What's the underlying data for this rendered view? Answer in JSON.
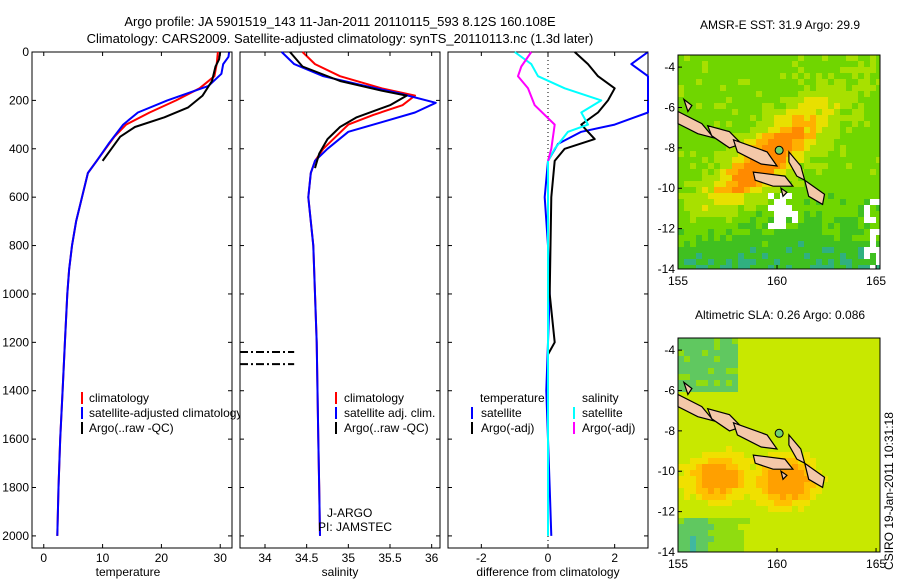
{
  "header": {
    "line1": "Argo profile: JA 5901519_143 11-Jan-2011 20110115_593 8.12S 160.108E",
    "line2": "Climatology: CARS2009. Satellite-adjusted climatology: synTS_20110113.nc (1.3d later)"
  },
  "footer": {
    "credit": "CSIRO 19-Jan-2011 10:31:18"
  },
  "colors": {
    "climatology": "#ff0000",
    "satellite": "#0000ff",
    "argo": "#000000",
    "sat_salinity": "#00ffff",
    "argo_salinity": "#ff00ff"
  },
  "chart_data": [
    {
      "id": "temperature",
      "type": "line",
      "xlabel": "temperature",
      "xlim": [
        -2,
        32
      ],
      "ylim": [
        0,
        2050
      ],
      "y_reversed": true,
      "xticks": [
        0,
        10,
        20,
        30
      ],
      "yticks": [
        0,
        200,
        400,
        600,
        800,
        1000,
        1200,
        1400,
        1600,
        1800,
        2000
      ],
      "legend": [
        "climatology",
        "satellite-adjusted climatology",
        "Argo(..raw -QC)"
      ],
      "series": [
        {
          "name": "climatology",
          "color": "#ff0000",
          "points": [
            [
              29.6,
              0
            ],
            [
              29.4,
              50
            ],
            [
              29.0,
              100
            ],
            [
              26.5,
              150
            ],
            [
              22.5,
              200
            ],
            [
              18,
              250
            ],
            [
              14,
              300
            ],
            [
              12,
              350
            ],
            [
              10.5,
              400
            ],
            [
              9,
              450
            ],
            [
              7.5,
              500
            ],
            [
              6.5,
              600
            ],
            [
              5.5,
              700
            ],
            [
              4.8,
              800
            ],
            [
              4.3,
              900
            ],
            [
              4,
              1000
            ],
            [
              3.6,
              1200
            ],
            [
              3.2,
              1400
            ],
            [
              2.8,
              1600
            ],
            [
              2.5,
              1800
            ],
            [
              2.3,
              2000
            ]
          ]
        },
        {
          "name": "satellite-adjusted climatology",
          "color": "#0000ff",
          "points": [
            [
              31.5,
              0
            ],
            [
              31.4,
              20
            ],
            [
              30.5,
              50
            ],
            [
              30.2,
              90
            ],
            [
              28,
              140
            ],
            [
              21,
              200
            ],
            [
              16,
              250
            ],
            [
              13.5,
              300
            ],
            [
              11,
              380
            ],
            [
              9,
              450
            ],
            [
              7.5,
              500
            ],
            [
              6.5,
              600
            ],
            [
              5.5,
              700
            ],
            [
              4.8,
              800
            ],
            [
              4.3,
              900
            ],
            [
              4,
              1000
            ],
            [
              3.6,
              1200
            ],
            [
              3.2,
              1400
            ],
            [
              2.8,
              1600
            ],
            [
              2.5,
              1800
            ],
            [
              2.3,
              2000
            ]
          ]
        },
        {
          "name": "Argo(..raw -QC)",
          "color": "#000000",
          "points": [
            [
              30,
              0
            ],
            [
              29.8,
              30
            ],
            [
              29.2,
              60
            ],
            [
              28.6,
              120
            ],
            [
              27,
              180
            ],
            [
              24.5,
              230
            ],
            [
              20.5,
              270
            ],
            [
              15.5,
              310
            ],
            [
              13,
              350
            ],
            [
              11.5,
              400
            ],
            [
              10,
              450
            ]
          ]
        }
      ]
    },
    {
      "id": "salinity",
      "type": "line",
      "xlabel": "salinity",
      "xlim": [
        33.7,
        36.1
      ],
      "ylim": [
        0,
        2050
      ],
      "y_reversed": true,
      "xticks": [
        34,
        34.5,
        35,
        35.5,
        36
      ],
      "legend": [
        "climatology",
        "satellite adj. clim.",
        "Argo(..raw -QC)"
      ],
      "annotations": [
        "J-ARGO",
        "PI: JAMSTEC"
      ],
      "series": [
        {
          "name": "climatology",
          "color": "#ff0000",
          "points": [
            [
              34.45,
              0
            ],
            [
              34.6,
              50
            ],
            [
              34.9,
              100
            ],
            [
              35.4,
              150
            ],
            [
              35.8,
              180
            ],
            [
              35.65,
              220
            ],
            [
              35.3,
              260
            ],
            [
              35.0,
              300
            ],
            [
              34.85,
              350
            ],
            [
              34.7,
              400
            ],
            [
              34.6,
              450
            ],
            [
              34.55,
              500
            ],
            [
              34.52,
              600
            ],
            [
              34.55,
              700
            ],
            [
              34.58,
              800
            ],
            [
              34.6,
              1000
            ],
            [
              34.62,
              1200
            ],
            [
              34.63,
              1400
            ],
            [
              34.64,
              1600
            ],
            [
              34.65,
              1800
            ],
            [
              34.66,
              2000
            ]
          ]
        },
        {
          "name": "satellite adj. clim.",
          "color": "#0000ff",
          "points": [
            [
              34.2,
              0
            ],
            [
              34.35,
              50
            ],
            [
              34.7,
              100
            ],
            [
              35.2,
              140
            ],
            [
              35.6,
              170
            ],
            [
              36.05,
              210
            ],
            [
              35.8,
              250
            ],
            [
              35.4,
              290
            ],
            [
              35.0,
              330
            ],
            [
              34.75,
              400
            ],
            [
              34.6,
              450
            ],
            [
              34.55,
              500
            ],
            [
              34.52,
              600
            ],
            [
              34.55,
              700
            ],
            [
              34.58,
              800
            ],
            [
              34.6,
              1000
            ],
            [
              34.62,
              1200
            ],
            [
              34.63,
              1400
            ],
            [
              34.64,
              1600
            ],
            [
              34.65,
              1800
            ],
            [
              34.66,
              2000
            ]
          ]
        },
        {
          "name": "Argo(..raw -QC)",
          "color": "#000000",
          "points": [
            [
              34.3,
              0
            ],
            [
              34.45,
              60
            ],
            [
              34.9,
              120
            ],
            [
              35.4,
              160
            ],
            [
              35.7,
              180
            ],
            [
              35.5,
              220
            ],
            [
              35.1,
              270
            ],
            [
              34.9,
              310
            ],
            [
              34.75,
              360
            ],
            [
              34.65,
              420
            ],
            [
              34.6,
              480
            ]
          ]
        }
      ],
      "dashed_markers": [
        {
          "y": 1240,
          "x": [
            33.7,
            34.35
          ]
        },
        {
          "y": 1290,
          "x": [
            33.7,
            34.35
          ]
        }
      ]
    },
    {
      "id": "difference",
      "type": "line",
      "xlabel": "difference from climatology",
      "xlim": [
        -3,
        3
      ],
      "ylim": [
        0,
        2050
      ],
      "y_reversed": true,
      "xticks": [
        -2,
        0,
        2
      ],
      "legend_headers": [
        "temperature",
        "salinity"
      ],
      "legend": [
        "satellite",
        "Argo(-adj)",
        "satellite",
        "Argo(-adj)"
      ],
      "series": [
        {
          "name": "temperature satellite",
          "color": "#0000ff",
          "points": [
            [
              3,
              0
            ],
            [
              2.5,
              50
            ],
            [
              3,
              100
            ],
            [
              3,
              250
            ],
            [
              2,
              300
            ],
            [
              1,
              330
            ],
            [
              0.3,
              380
            ],
            [
              0,
              450
            ],
            [
              -0.1,
              600
            ],
            [
              0,
              800
            ],
            [
              0.05,
              1000
            ],
            [
              0,
              1200
            ],
            [
              -0.05,
              1400
            ],
            [
              0,
              1600
            ],
            [
              0.05,
              1800
            ],
            [
              0.1,
              2000
            ]
          ]
        },
        {
          "name": "temperature Argo(-adj)",
          "color": "#000000",
          "points": [
            [
              0.8,
              0
            ],
            [
              1.2,
              50
            ],
            [
              1.5,
              100
            ],
            [
              2,
              150
            ],
            [
              1.8,
              200
            ],
            [
              1.5,
              250
            ],
            [
              1,
              300
            ],
            [
              1.4,
              360
            ],
            [
              0.5,
              400
            ],
            [
              0.2,
              450
            ],
            [
              0.1,
              600
            ],
            [
              0.05,
              1000
            ],
            [
              0.2,
              1200
            ],
            [
              0,
              1250
            ]
          ]
        },
        {
          "name": "salinity satellite",
          "color": "#00ffff",
          "points": [
            [
              -1,
              0
            ],
            [
              -0.5,
              50
            ],
            [
              -0.3,
              100
            ],
            [
              0.5,
              150
            ],
            [
              1.6,
              200
            ],
            [
              1,
              250
            ],
            [
              1.2,
              300
            ],
            [
              0.6,
              330
            ],
            [
              0.2,
              400
            ],
            [
              0,
              450
            ],
            [
              0,
              600
            ],
            [
              0,
              1000
            ],
            [
              0,
              1400
            ],
            [
              0,
              1800
            ],
            [
              0,
              2000
            ]
          ]
        },
        {
          "name": "salinity Argo(-adj)",
          "color": "#ff00ff",
          "points": [
            [
              -0.5,
              0
            ],
            [
              -0.8,
              60
            ],
            [
              -0.9,
              100
            ],
            [
              -0.6,
              150
            ],
            [
              -0.4,
              220
            ],
            [
              0.2,
              300
            ],
            [
              0.1,
              400
            ],
            [
              0,
              450
            ]
          ]
        }
      ]
    },
    {
      "id": "sst-map",
      "type": "heatmap",
      "title": "AMSR-E SST: 31.9  Argo: 29.9",
      "xlim": [
        155,
        165.2
      ],
      "ylim": [
        -14,
        -3.4
      ],
      "xticks": [
        155,
        160,
        165
      ],
      "yticks": [
        -4,
        -6,
        -8,
        -10,
        -12,
        -14
      ]
    },
    {
      "id": "sla-map",
      "type": "heatmap",
      "title": "Altimetric SLA: 0.26  Argo: 0.086",
      "xlim": [
        155,
        165.2
      ],
      "ylim": [
        -14,
        -3.4
      ],
      "xticks": [
        155,
        160,
        165
      ],
      "yticks": [
        -4,
        -6,
        -8,
        -10,
        -12,
        -14
      ]
    }
  ]
}
